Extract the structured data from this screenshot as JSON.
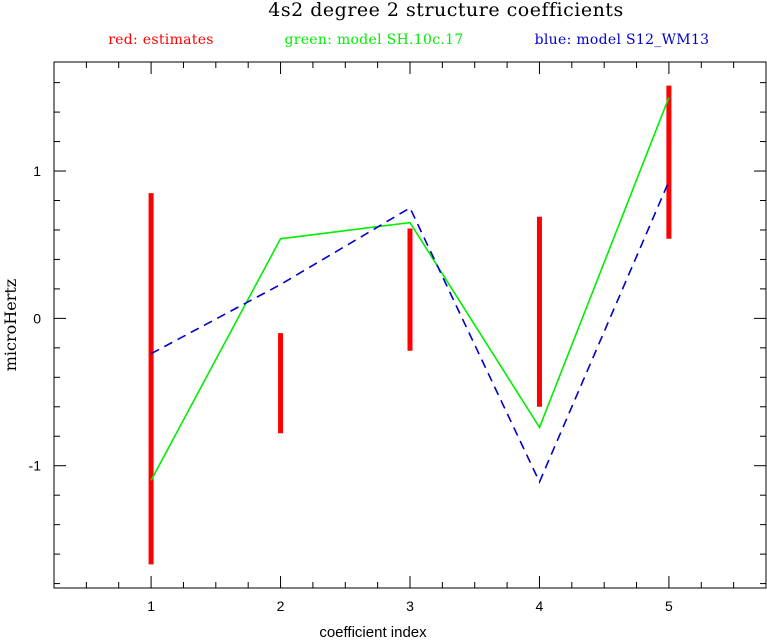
{
  "chart_data": {
    "type": "line",
    "title": "4s2 degree 2 structure coefficients",
    "legend": {
      "placement": "top",
      "entries": [
        {
          "text": "red: estimates",
          "color": "#ff0000"
        },
        {
          "text": "green: model SH.10c.17",
          "color": "#00ee00"
        },
        {
          "text": "blue: model S12_WM13",
          "color": "#0000cc"
        }
      ]
    },
    "xlabel": "coefficient index",
    "ylabel": "microHertz",
    "xlim": [
      0.25,
      5.75
    ],
    "ylim": [
      -1.83,
      1.74
    ],
    "x_ticks": [
      1,
      2,
      3,
      4,
      5
    ],
    "x_tick_labels": [
      "1",
      "2",
      "3",
      "4",
      "5"
    ],
    "y_ticks": [
      -1,
      0,
      1
    ],
    "y_tick_labels": [
      "-1",
      "0",
      "1"
    ],
    "grid": false,
    "estimates": {
      "name": "red: estimates",
      "color": "#ff0000",
      "x": [
        1,
        2,
        3,
        4,
        5
      ],
      "low": [
        -1.67,
        -0.78,
        -0.22,
        -0.6,
        0.54
      ],
      "high": [
        0.85,
        -0.1,
        0.61,
        0.69,
        1.58
      ]
    },
    "series": [
      {
        "name": "green: model SH.10c.17",
        "color": "#00ee00",
        "style": "solid",
        "x": [
          1,
          2,
          3,
          4,
          5
        ],
        "values": [
          -1.1,
          0.54,
          0.65,
          -0.74,
          1.5
        ]
      },
      {
        "name": "blue: model S12_WM13",
        "color": "#0000cc",
        "style": "dashed",
        "x": [
          1,
          2,
          3,
          4,
          5
        ],
        "values": [
          -0.24,
          0.23,
          0.75,
          -1.11,
          0.93
        ]
      }
    ]
  }
}
